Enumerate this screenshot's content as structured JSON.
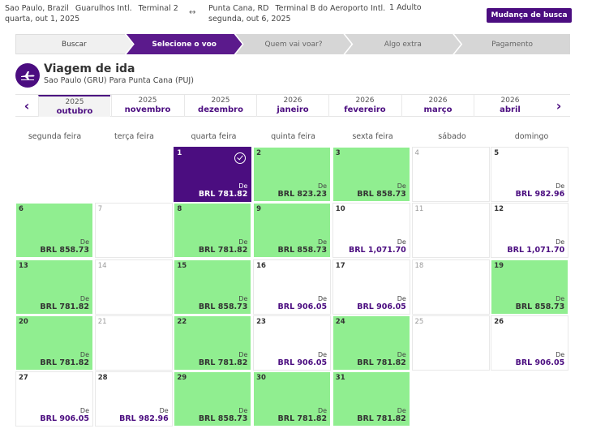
{
  "header": {
    "origin_city": "Sao Paulo, Brazil",
    "origin_airport": "Guarulhos Intl.",
    "origin_terminal": "Terminal 2",
    "origin_date": "quarta, out 1, 2025",
    "dest_city": "Punta Cana, RD",
    "dest_airport": "Terminal B do Aeroporto Intl.",
    "dest_date": "segunda, out 6, 2025",
    "passengers": "1 Adulto",
    "change_button": "Mudança de busca",
    "swap_icon": "↔"
  },
  "steps": [
    {
      "label": "Buscar"
    },
    {
      "label": "Selecione o voo"
    },
    {
      "label": "Quem vai voar?"
    },
    {
      "label": "Algo extra"
    },
    {
      "label": "Pagamento"
    }
  ],
  "trip": {
    "title": "Viagem de ida",
    "subtitle": "Sao Paulo (GRU) Para Punta Cana (PUJ)",
    "icon": "plane-icon"
  },
  "months_nav": {
    "prev": "‹",
    "next": "›",
    "months": [
      {
        "year": "2025",
        "month": "outubro"
      },
      {
        "year": "2025",
        "month": "novembro"
      },
      {
        "year": "2025",
        "month": "dezembro"
      },
      {
        "year": "2026",
        "month": "janeiro"
      },
      {
        "year": "2026",
        "month": "fevereiro"
      },
      {
        "year": "2026",
        "month": "março"
      },
      {
        "year": "2026",
        "month": "abril"
      }
    ]
  },
  "weekdays": [
    "segunda feira",
    "terça feira",
    "quarta feira",
    "quinta feira",
    "sexta feira",
    "sábado",
    "domingo"
  ],
  "calendar": {
    "from_label": "De",
    "days": [
      {
        "d": "1",
        "price": "BRL 781.82",
        "state": "selected"
      },
      {
        "d": "2",
        "price": "BRL 823.23",
        "state": "green"
      },
      {
        "d": "3",
        "price": "BRL 858.73",
        "state": "green"
      },
      {
        "d": "4",
        "price": "",
        "state": "empty"
      },
      {
        "d": "5",
        "price": "BRL 982.96",
        "state": "white"
      },
      {
        "d": "6",
        "price": "BRL 858.73",
        "state": "green"
      },
      {
        "d": "7",
        "price": "",
        "state": "empty"
      },
      {
        "d": "8",
        "price": "BRL 781.82",
        "state": "green"
      },
      {
        "d": "9",
        "price": "BRL 858.73",
        "state": "green"
      },
      {
        "d": "10",
        "price": "BRL 1,071.70",
        "state": "white"
      },
      {
        "d": "11",
        "price": "",
        "state": "empty"
      },
      {
        "d": "12",
        "price": "BRL 1,071.70",
        "state": "white"
      },
      {
        "d": "13",
        "price": "BRL 781.82",
        "state": "green"
      },
      {
        "d": "14",
        "price": "",
        "state": "empty"
      },
      {
        "d": "15",
        "price": "BRL 858.73",
        "state": "green"
      },
      {
        "d": "16",
        "price": "BRL 906.05",
        "state": "white"
      },
      {
        "d": "17",
        "price": "BRL 906.05",
        "state": "white"
      },
      {
        "d": "18",
        "price": "",
        "state": "empty"
      },
      {
        "d": "19",
        "price": "BRL 858.73",
        "state": "green"
      },
      {
        "d": "20",
        "price": "BRL 781.82",
        "state": "green"
      },
      {
        "d": "21",
        "price": "",
        "state": "empty"
      },
      {
        "d": "22",
        "price": "BRL 781.82",
        "state": "green"
      },
      {
        "d": "23",
        "price": "BRL 906.05",
        "state": "white"
      },
      {
        "d": "24",
        "price": "BRL 781.82",
        "state": "green"
      },
      {
        "d": "25",
        "price": "",
        "state": "empty"
      },
      {
        "d": "26",
        "price": "BRL 906.05",
        "state": "white"
      },
      {
        "d": "27",
        "price": "BRL 906.05",
        "state": "white"
      },
      {
        "d": "28",
        "price": "BRL 982.96",
        "state": "white"
      },
      {
        "d": "29",
        "price": "BRL 858.73",
        "state": "green"
      },
      {
        "d": "30",
        "price": "BRL 781.82",
        "state": "green"
      },
      {
        "d": "31",
        "price": "BRL 781.82",
        "state": "green"
      }
    ]
  },
  "colors": {
    "brand_purple": "#4b0d80",
    "available_green": "#90ee90"
  }
}
